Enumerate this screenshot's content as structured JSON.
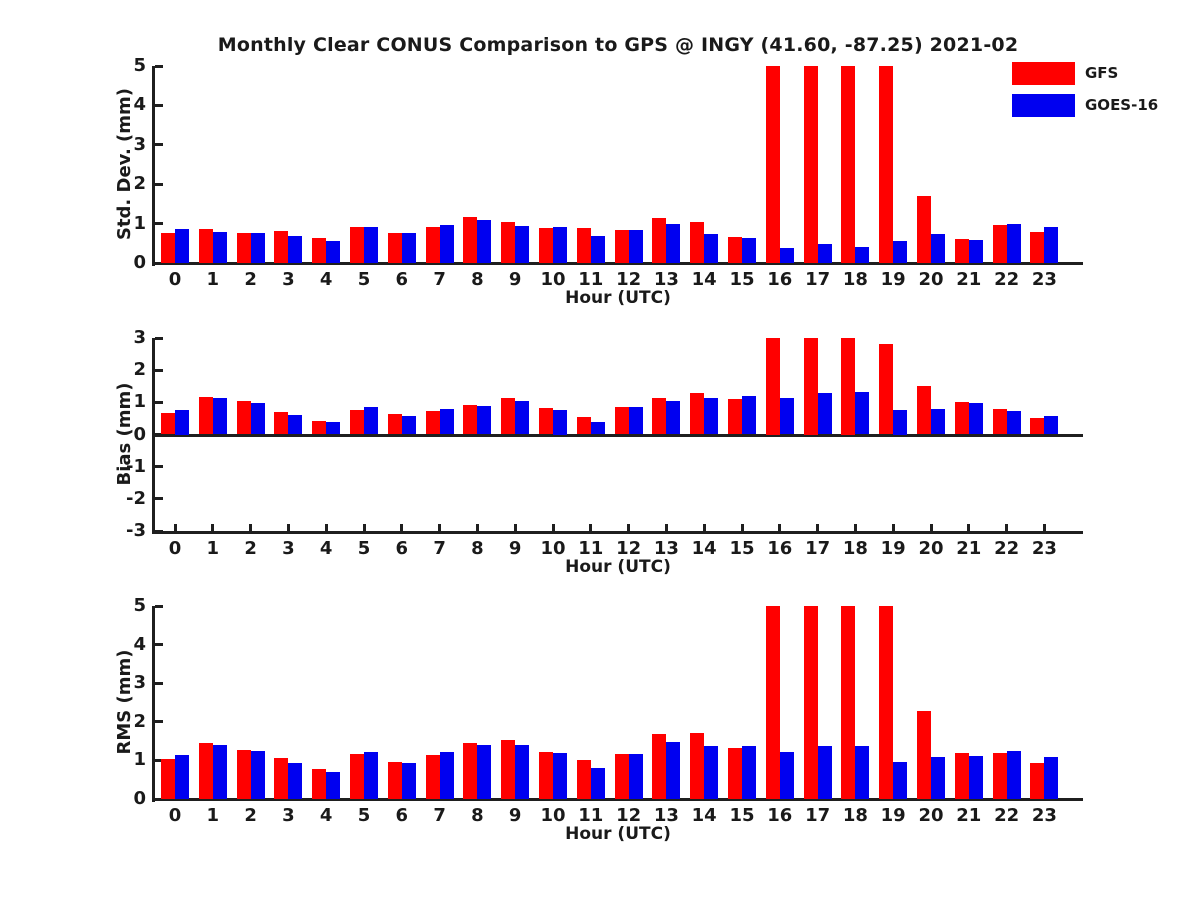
{
  "title": "Monthly Clear CONUS Comparison to GPS @ INGY (41.60, -87.25) 2021-02",
  "legend": {
    "position": "top-right",
    "items": [
      {
        "label": "GFS",
        "color": "#ff0000"
      },
      {
        "label": "GOES-16",
        "color": "#0000f0"
      }
    ]
  },
  "colors": {
    "gfs": "#ff0000",
    "goes16": "#0000f0",
    "axis": "#1f1f1f",
    "text": "#1a1a1a"
  },
  "chart_data": [
    {
      "type": "bar",
      "ylabel": "Std. Dev. (mm)",
      "xlabel": "Hour (UTC)",
      "ylim": [
        0,
        5
      ],
      "yticks": [
        0,
        1,
        2,
        3,
        4,
        5
      ],
      "grid": false,
      "categories": [
        "0",
        "1",
        "2",
        "3",
        "4",
        "5",
        "6",
        "7",
        "8",
        "9",
        "10",
        "11",
        "12",
        "13",
        "14",
        "15",
        "16",
        "17",
        "18",
        "19",
        "20",
        "21",
        "22",
        "23"
      ],
      "series": [
        {
          "name": "GFS",
          "color": "#ff0000",
          "values": [
            0.77,
            0.86,
            0.76,
            0.82,
            0.64,
            0.92,
            0.75,
            0.92,
            1.17,
            1.05,
            0.89,
            0.88,
            0.85,
            1.14,
            1.05,
            0.67,
            5.0,
            5.0,
            5.0,
            5.0,
            1.7,
            0.61,
            0.96,
            0.79
          ]
        },
        {
          "name": "GOES-16",
          "color": "#0000f0",
          "values": [
            0.87,
            0.79,
            0.77,
            0.69,
            0.56,
            0.92,
            0.75,
            0.96,
            1.09,
            0.94,
            0.92,
            0.69,
            0.83,
            1.0,
            0.73,
            0.64,
            0.39,
            0.47,
            0.41,
            0.56,
            0.74,
            0.58,
            0.98,
            0.91
          ]
        }
      ],
      "note": "GFS bars at hours 16-19 reach the axis maximum (clipped at 5)"
    },
    {
      "type": "bar",
      "ylabel": "Bias (mm)",
      "xlabel": "Hour (UTC)",
      "ylim": [
        -3,
        3
      ],
      "yticks": [
        -3,
        -2,
        -1,
        0,
        1,
        2,
        3
      ],
      "grid": false,
      "categories": [
        "0",
        "1",
        "2",
        "3",
        "4",
        "5",
        "6",
        "7",
        "8",
        "9",
        "10",
        "11",
        "12",
        "13",
        "14",
        "15",
        "16",
        "17",
        "18",
        "19",
        "20",
        "21",
        "22",
        "23"
      ],
      "series": [
        {
          "name": "GFS",
          "color": "#ff0000",
          "values": [
            0.68,
            1.18,
            1.05,
            0.7,
            0.42,
            0.76,
            0.63,
            0.73,
            0.92,
            1.15,
            0.82,
            0.55,
            0.85,
            1.15,
            1.3,
            1.1,
            3.0,
            3.0,
            3.0,
            2.8,
            1.52,
            1.0,
            0.78,
            0.5
          ]
        },
        {
          "name": "GOES-16",
          "color": "#0000f0",
          "values": [
            0.75,
            1.15,
            0.97,
            0.6,
            0.38,
            0.85,
            0.57,
            0.78,
            0.88,
            1.05,
            0.75,
            0.38,
            0.85,
            1.05,
            1.15,
            1.2,
            1.15,
            1.28,
            1.32,
            0.75,
            0.8,
            0.97,
            0.73,
            0.57
          ]
        }
      ],
      "note": "GFS bars at hours 16-18 reach the axis maximum of 3"
    },
    {
      "type": "bar",
      "ylabel": "RMS (mm)",
      "xlabel": "Hour (UTC)",
      "ylim": [
        0,
        5
      ],
      "yticks": [
        0,
        1,
        2,
        3,
        4,
        5
      ],
      "grid": false,
      "categories": [
        "0",
        "1",
        "2",
        "3",
        "4",
        "5",
        "6",
        "7",
        "8",
        "9",
        "10",
        "11",
        "12",
        "13",
        "14",
        "15",
        "16",
        "17",
        "18",
        "19",
        "20",
        "21",
        "22",
        "23"
      ],
      "series": [
        {
          "name": "GFS",
          "color": "#ff0000",
          "values": [
            1.03,
            1.44,
            1.27,
            1.06,
            0.78,
            1.17,
            0.97,
            1.15,
            1.46,
            1.53,
            1.21,
            1.01,
            1.16,
            1.68,
            1.71,
            1.32,
            5.0,
            5.0,
            5.0,
            5.0,
            2.28,
            1.19,
            1.2,
            0.93
          ]
        },
        {
          "name": "GOES-16",
          "color": "#0000f0",
          "values": [
            1.15,
            1.39,
            1.25,
            0.93,
            0.7,
            1.22,
            0.94,
            1.22,
            1.4,
            1.4,
            1.19,
            0.81,
            1.17,
            1.47,
            1.38,
            1.38,
            1.22,
            1.38,
            1.38,
            0.95,
            1.08,
            1.12,
            1.25,
            1.08
          ]
        }
      ],
      "note": "GFS bars at hours 16-19 reach the axis maximum (clipped at 5)"
    }
  ]
}
